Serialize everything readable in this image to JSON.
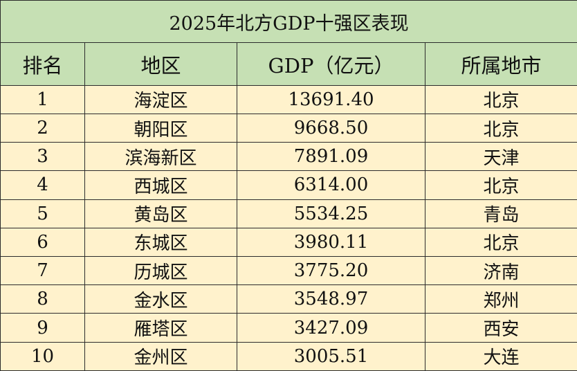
{
  "title": "2025年北方GDP十强区表现",
  "headers": {
    "rank": "排名",
    "region": "地区",
    "gdp": "GDP（亿元）",
    "city": "所属地市"
  },
  "rows": [
    {
      "rank": "1",
      "region": "海淀区",
      "gdp": "13691.40",
      "city": "北京"
    },
    {
      "rank": "2",
      "region": "朝阳区",
      "gdp": "9668.50",
      "city": "北京"
    },
    {
      "rank": "3",
      "region": "滨海新区",
      "gdp": "7891.09",
      "city": "天津"
    },
    {
      "rank": "4",
      "region": "西城区",
      "gdp": "6314.00",
      "city": "北京"
    },
    {
      "rank": "5",
      "region": "黄岛区",
      "gdp": "5534.25",
      "city": "青岛"
    },
    {
      "rank": "6",
      "region": "东城区",
      "gdp": "3980.11",
      "city": "北京"
    },
    {
      "rank": "7",
      "region": "历城区",
      "gdp": "3775.20",
      "city": "济南"
    },
    {
      "rank": "8",
      "region": "金水区",
      "gdp": "3548.97",
      "city": "郑州"
    },
    {
      "rank": "9",
      "region": "雁塔区",
      "gdp": "3427.09",
      "city": "西安"
    },
    {
      "rank": "10",
      "region": "金州区",
      "gdp": "3005.51",
      "city": "大连"
    }
  ]
}
